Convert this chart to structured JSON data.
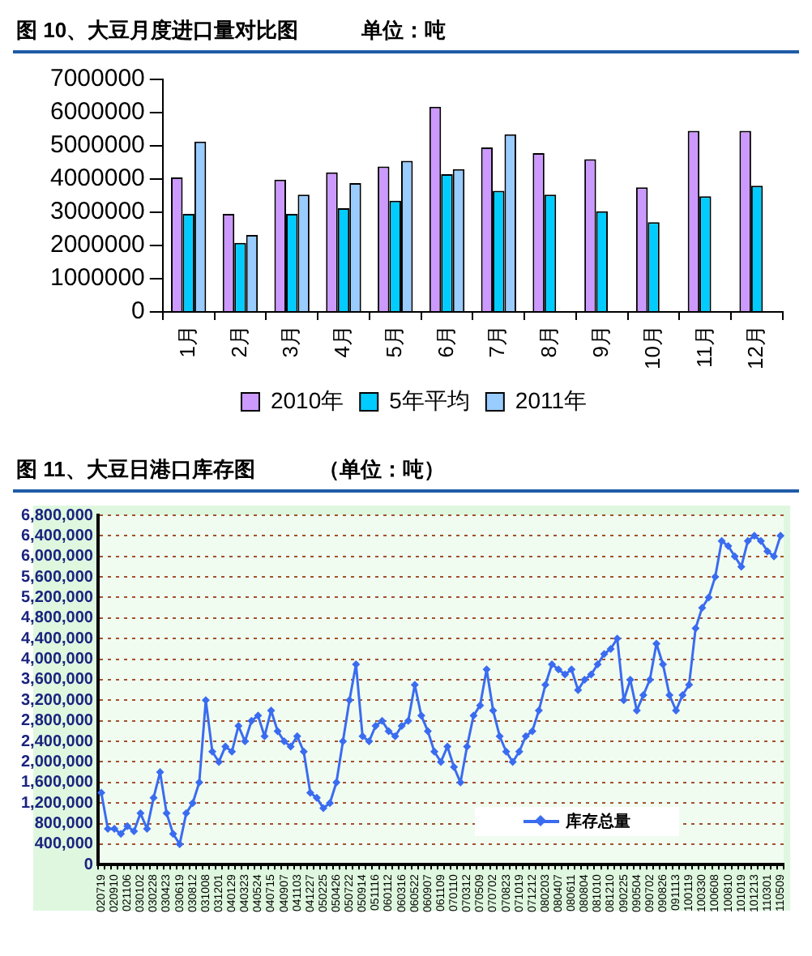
{
  "chart_data": [
    {
      "type": "bar",
      "title": "图 10、大豆月度进口量对比图　　　单位：吨",
      "categories": [
        "1月",
        "2月",
        "3月",
        "4月",
        "5月",
        "6月",
        "7月",
        "8月",
        "9月",
        "10月",
        "11月",
        "12月"
      ],
      "series": [
        {
          "name": "2010年",
          "color": "#cc99ff",
          "values": [
            4050000,
            2950000,
            3980000,
            4200000,
            4380000,
            6180000,
            4950000,
            4780000,
            4600000,
            3750000,
            5450000,
            5450000
          ]
        },
        {
          "name": "5年平均",
          "color": "#00ccff",
          "values": [
            2950000,
            2080000,
            2950000,
            3120000,
            3350000,
            4150000,
            3650000,
            3530000,
            3030000,
            2700000,
            3480000,
            3800000
          ]
        },
        {
          "name": "2011年",
          "color": "#99ccff",
          "values": [
            5130000,
            2320000,
            3530000,
            3880000,
            4550000,
            4300000,
            5350000,
            null,
            null,
            null,
            null,
            null
          ]
        }
      ],
      "ylim": [
        0,
        7000000
      ],
      "yticks": [
        0,
        1000000,
        2000000,
        3000000,
        4000000,
        5000000,
        6000000,
        7000000
      ],
      "grid": false,
      "legend": "bottom"
    },
    {
      "type": "line",
      "title": "图 11、大豆日港口库存图　　　（单位：吨）",
      "categories": [
        "020719",
        null,
        "020910",
        null,
        "021106",
        null,
        "030102",
        null,
        "030228",
        null,
        "030423",
        null,
        "030619",
        null,
        "030812",
        null,
        "031008",
        null,
        "031201",
        null,
        "040129",
        null,
        "040323",
        null,
        "040524",
        null,
        "040715",
        null,
        "040907",
        null,
        "041103",
        null,
        "041227",
        null,
        "050225",
        null,
        "050426",
        null,
        "050722",
        null,
        "050914",
        null,
        "051116",
        null,
        "060112",
        null,
        "060316",
        null,
        "060522",
        null,
        "060907",
        null,
        "061109",
        null,
        "070110",
        null,
        "070312",
        null,
        "070509",
        null,
        "070702",
        null,
        "070823",
        null,
        "071019",
        null,
        "071212",
        null,
        "080203",
        null,
        "080407",
        null,
        "080611",
        null,
        "080804",
        null,
        "081010",
        null,
        "081210",
        null,
        "090225",
        null,
        "090504",
        null,
        "090702",
        null,
        "090826",
        null,
        "091113",
        null,
        "100119",
        null,
        "100330",
        null,
        "100608",
        null,
        "100810",
        null,
        "101019",
        null,
        "101213",
        null,
        "110301",
        null,
        "110509"
      ],
      "series": [
        {
          "name": "库存总量",
          "color": "#3a6cf0",
          "values": [
            1400000,
            700000,
            700000,
            600000,
            750000,
            650000,
            1000000,
            700000,
            1300000,
            1800000,
            1000000,
            600000,
            400000,
            1000000,
            1200000,
            1600000,
            3200000,
            2200000,
            2000000,
            2300000,
            2200000,
            2700000,
            2400000,
            2800000,
            2900000,
            2500000,
            3000000,
            2600000,
            2400000,
            2300000,
            2500000,
            2200000,
            1400000,
            1300000,
            1100000,
            1200000,
            1600000,
            2400000,
            3200000,
            3900000,
            2500000,
            2400000,
            2700000,
            2800000,
            2600000,
            2500000,
            2700000,
            2800000,
            3500000,
            2900000,
            2600000,
            2200000,
            2000000,
            2300000,
            1900000,
            1600000,
            2300000,
            2900000,
            3100000,
            3800000,
            3000000,
            2500000,
            2200000,
            2000000,
            2200000,
            2500000,
            2600000,
            3000000,
            3500000,
            3900000,
            3800000,
            3700000,
            3800000,
            3400000,
            3600000,
            3700000,
            3900000,
            4100000,
            4200000,
            4400000,
            3200000,
            3600000,
            3000000,
            3300000,
            3600000,
            4300000,
            3900000,
            3300000,
            3000000,
            3300000,
            3500000,
            4600000,
            5000000,
            5200000,
            5600000,
            6300000,
            6200000,
            6000000,
            5800000,
            6300000,
            6400000,
            6300000,
            6100000,
            6000000,
            6400000
          ]
        }
      ],
      "ylim": [
        0,
        6800000
      ],
      "yticks": [
        {
          "value": 0,
          "label": "0"
        },
        {
          "value": 400000,
          "label": "400,000"
        },
        {
          "value": 800000,
          "label": "800,000"
        },
        {
          "value": 1200000,
          "label": "1,200,000"
        },
        {
          "value": 1600000,
          "label": "1,600,000"
        },
        {
          "value": 2000000,
          "label": "2,000,000"
        },
        {
          "value": 2400000,
          "label": "2,400,000"
        },
        {
          "value": 2800000,
          "label": "2,800,000"
        },
        {
          "value": 3200000,
          "label": "3,200,000"
        },
        {
          "value": 3600000,
          "label": "3,600,000"
        },
        {
          "value": 4000000,
          "label": "4,000,000"
        },
        {
          "value": 4400000,
          "label": "4,400,000"
        },
        {
          "value": 4800000,
          "label": "4,800,000"
        },
        {
          "value": 5200000,
          "label": "5,200,000"
        },
        {
          "value": 5600000,
          "label": "5,600,000"
        },
        {
          "value": 6000000,
          "label": "6,000,000"
        },
        {
          "value": 6400000,
          "label": "6,400,000"
        },
        {
          "value": 6800000,
          "label": "6,800,000"
        }
      ],
      "grid": "y",
      "legend": "bottom right",
      "marker": "diamond",
      "line_style": "solid"
    }
  ]
}
